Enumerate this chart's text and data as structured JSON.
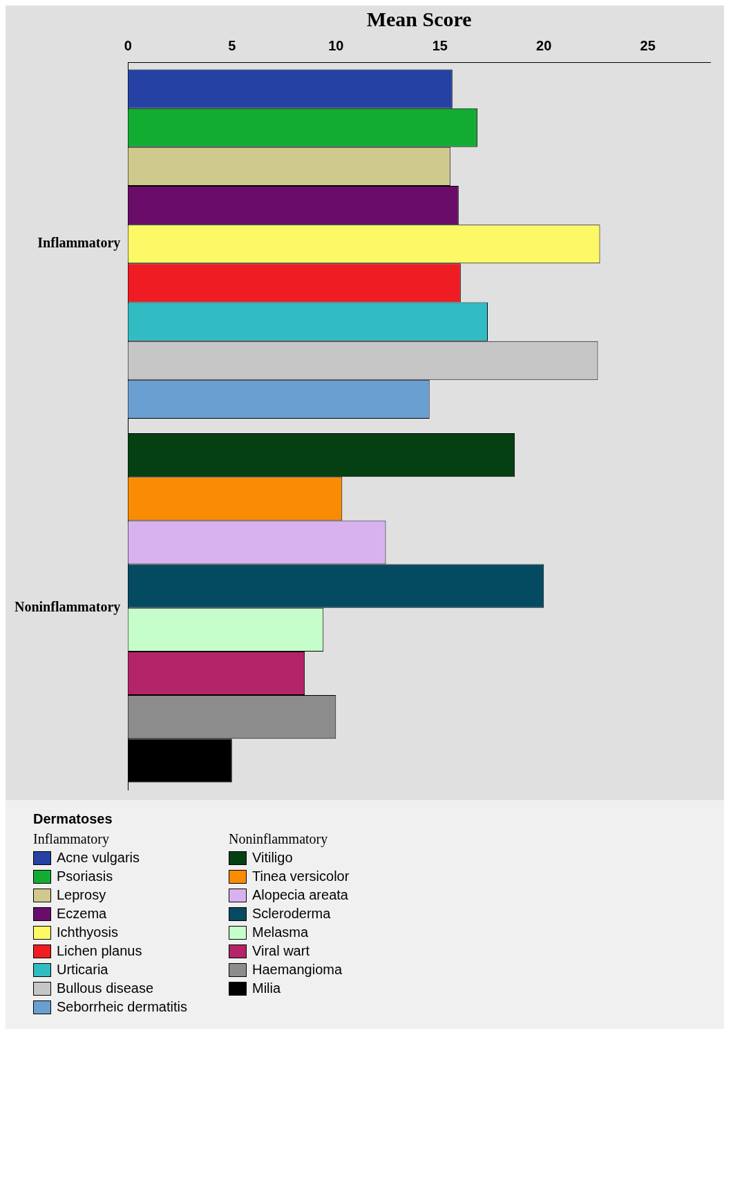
{
  "chart_data": {
    "type": "bar",
    "orientation": "horizontal",
    "xlabel": "Mean Score",
    "legend_title": "Dermatoses",
    "legend": "bottom",
    "grid": false,
    "xlim": [
      0,
      28
    ],
    "xticks": [
      0,
      5,
      10,
      15,
      20,
      25
    ],
    "categories": [
      "Inflammatory",
      "Noninflammatory"
    ],
    "series": [
      {
        "name": "Acne vulgaris",
        "color": "#2541a3",
        "values": [
          15.6,
          null
        ]
      },
      {
        "name": "Psoriasis",
        "color": "#13ac33",
        "values": [
          16.8,
          null
        ]
      },
      {
        "name": "Leprosy",
        "color": "#d0c98d",
        "values": [
          15.5,
          null
        ]
      },
      {
        "name": "Eczema",
        "color": "#6a0c6a",
        "values": [
          15.9,
          null
        ]
      },
      {
        "name": "Ichthyosis",
        "color": "#fcf866",
        "values": [
          22.7,
          null
        ]
      },
      {
        "name": "Lichen planus",
        "color": "#ef1c24",
        "values": [
          16.0,
          null
        ]
      },
      {
        "name": "Urticaria",
        "color": "#30bcc2",
        "values": [
          17.3,
          null
        ]
      },
      {
        "name": "Bullous disease",
        "color": "#c6c6c6",
        "values": [
          22.6,
          null
        ]
      },
      {
        "name": "Seborrheic dermatitis",
        "color": "#6a9fd1",
        "values": [
          14.5,
          null
        ]
      },
      {
        "name": "Vitiligo",
        "color": "#044012",
        "values": [
          null,
          18.6
        ]
      },
      {
        "name": "Tinea versicolor",
        "color": "#f98c04",
        "values": [
          null,
          10.3
        ]
      },
      {
        "name": "Alopecia areata",
        "color": "#d8b2ee",
        "values": [
          null,
          12.4
        ]
      },
      {
        "name": "Scleroderma",
        "color": "#044b62",
        "values": [
          null,
          20.0
        ]
      },
      {
        "name": "Melasma",
        "color": "#c6fecb",
        "values": [
          null,
          9.4
        ]
      },
      {
        "name": "Viral wart",
        "color": "#b32468",
        "values": [
          null,
          8.5
        ]
      },
      {
        "name": "Haemangioma",
        "color": "#8c8c8c",
        "values": [
          null,
          10.0
        ]
      },
      {
        "name": "Milia",
        "color": "#000000",
        "values": [
          null,
          5.0
        ]
      }
    ]
  }
}
